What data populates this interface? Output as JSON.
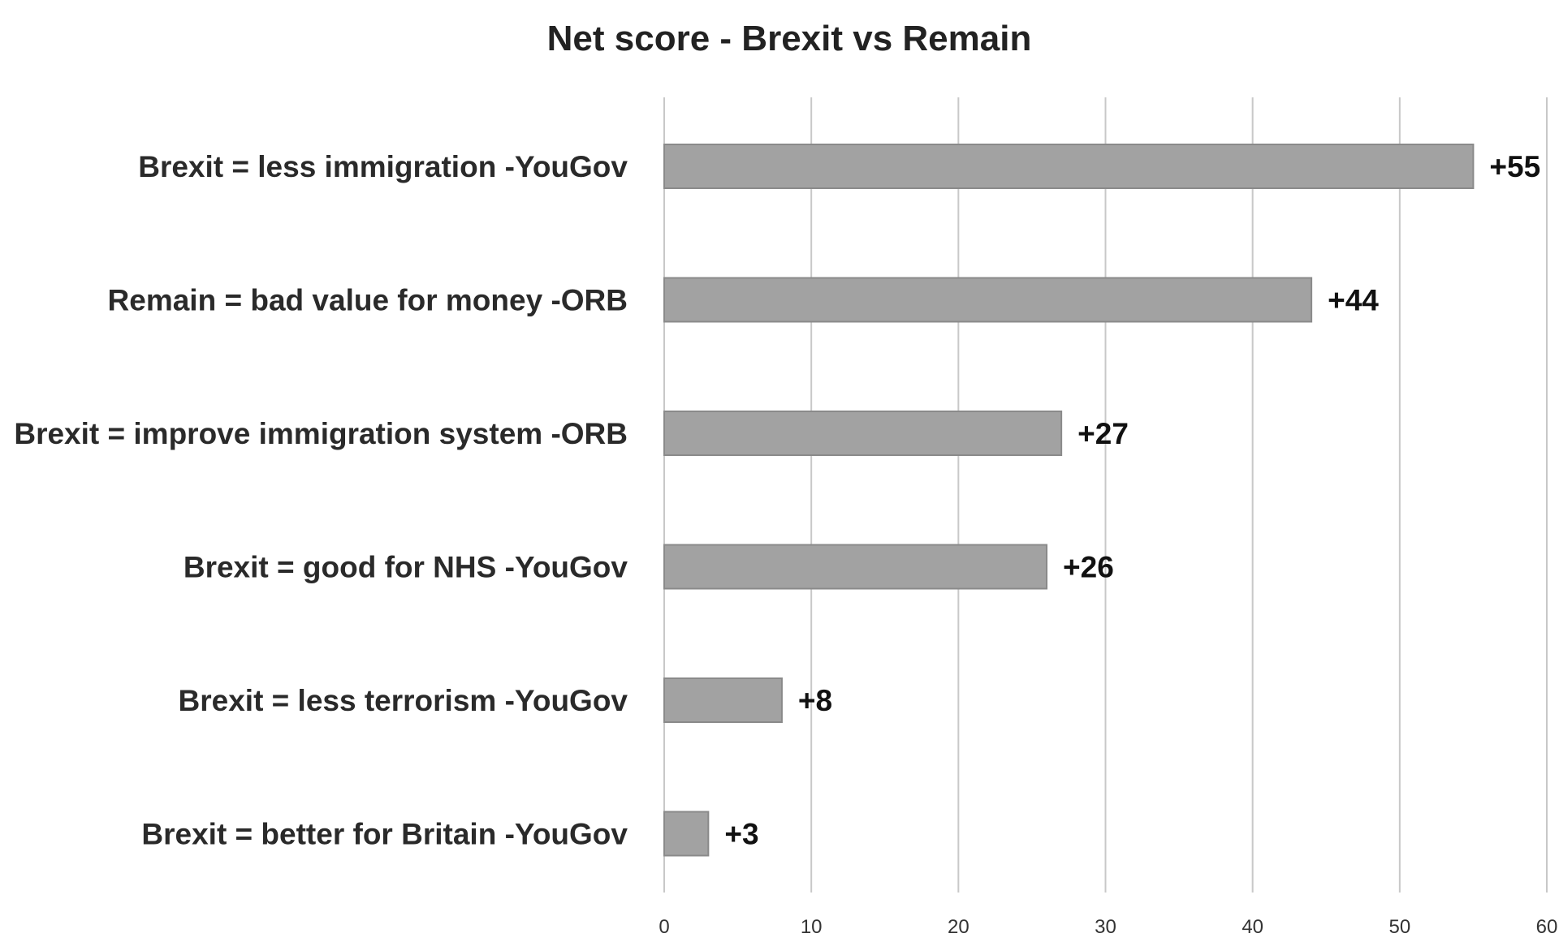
{
  "chart_data": {
    "type": "bar",
    "orientation": "horizontal",
    "title": "Net score - Brexit vs Remain",
    "xlabel": "",
    "ylabel": "",
    "categories": [
      "Brexit = less immigration -YouGov",
      "Remain = bad value for money -ORB",
      "Brexit = improve immigration system -ORB",
      "Brexit = good for NHS -YouGov",
      "Brexit = less terrorism -YouGov",
      "Brexit = better for Britain -YouGov"
    ],
    "values": [
      55,
      44,
      27,
      26,
      8,
      3
    ],
    "data_labels": [
      "+55",
      "+44",
      "+27",
      "+26",
      "+8",
      "+3"
    ],
    "xlim": [
      0,
      60
    ],
    "xticks": [
      "0",
      "10",
      "20",
      "30",
      "40",
      "50",
      "60"
    ],
    "grid": "vertical",
    "legend": "none",
    "bar_color": "#a2a2a2"
  }
}
